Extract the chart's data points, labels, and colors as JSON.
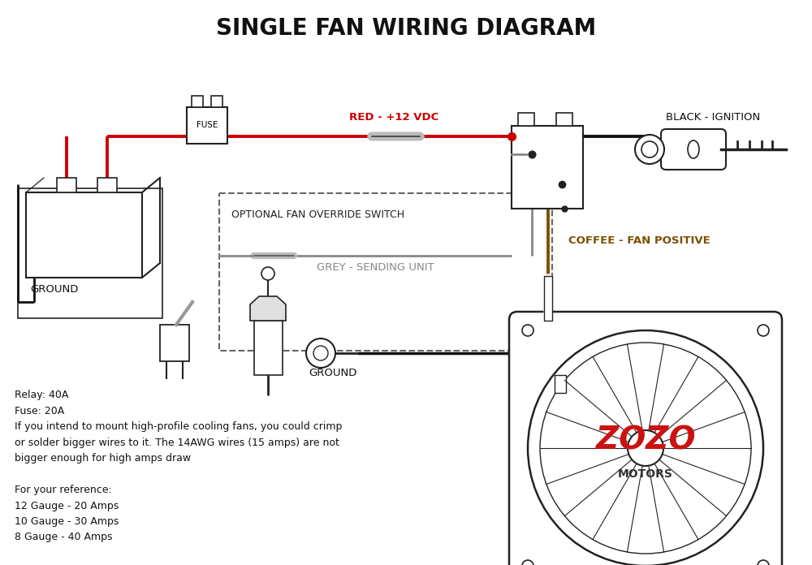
{
  "title": "SINGLE FAN WIRING DIAGRAM",
  "background_color": "#ffffff",
  "title_fontsize": 20,
  "wire_labels": {
    "red": "RED - +12 VDC",
    "black": "BLACK - IGNITION",
    "grey": "GREY - SENDING UNIT",
    "coffee": "COFFEE - FAN POSITIVE"
  },
  "component_labels": {
    "fuse": "FUSE",
    "ground1": "GROUND",
    "ground2": "GROUND",
    "optional": "OPTIONAL FAN OVERRIDE SWITCH"
  },
  "info_text": "Relay: 40A\nFuse: 20A\nIf you intend to mount high-profile cooling fans, you could crimp\nor solder bigger wires to it. The 14AWG wires (15 amps) are not\nbigger enough for high amps draw\n\nFor your reference:\n12 Gauge - 20 Amps\n10 Gauge - 30 Amps\n8 Gauge - 40 Amps",
  "colors": {
    "red_wire": "#cc0000",
    "black_wire": "#111111",
    "grey_wire": "#888888",
    "coffee_wire": "#7B5000",
    "component": "#222222",
    "dashed_box": "#666666"
  }
}
